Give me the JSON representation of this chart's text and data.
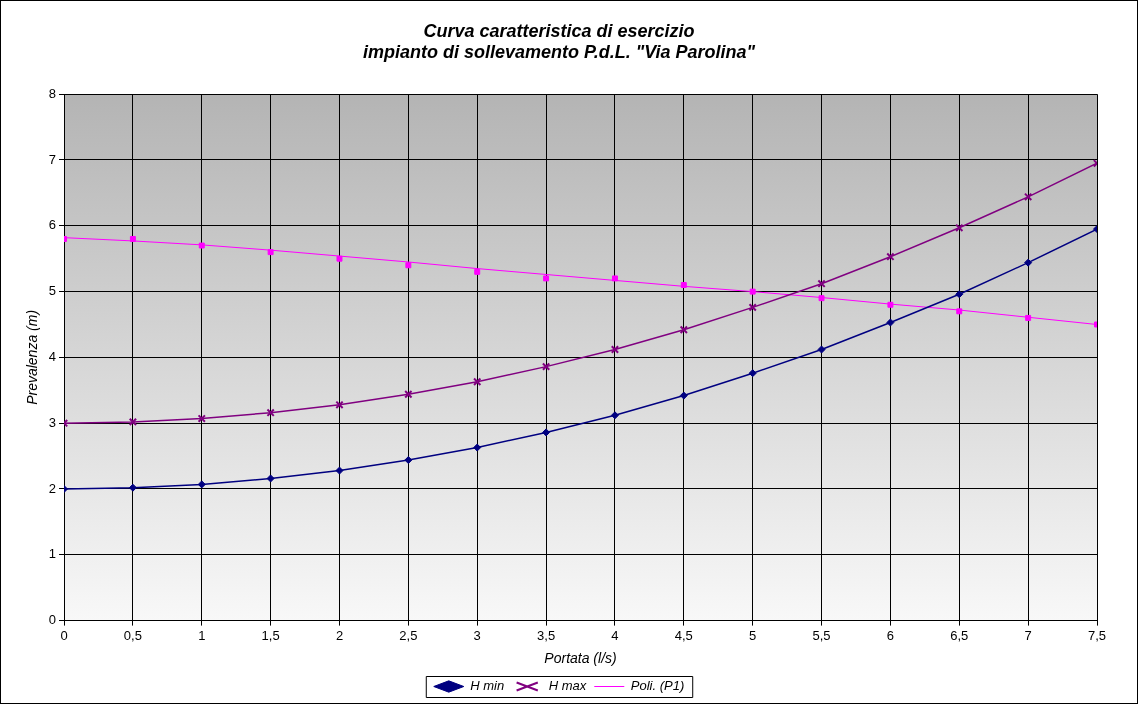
{
  "chart_data": {
    "type": "line",
    "title": "Curva caratteristica di esercizio\nimpianto di sollevamento P.d.L. \"Via Parolina\"",
    "xlabel": "Portata (l/s)",
    "ylabel": "Prevalenza (m)",
    "x": [
      0,
      0.5,
      1,
      1.5,
      2,
      2.5,
      3,
      3.5,
      4,
      4.5,
      5,
      5.5,
      6,
      6.5,
      7,
      7.5
    ],
    "series": [
      {
        "name": "H min",
        "color": "#000080",
        "marker": "diamond",
        "values": [
          2.0,
          2.02,
          2.07,
          2.16,
          2.28,
          2.44,
          2.63,
          2.86,
          3.12,
          3.42,
          3.76,
          4.12,
          4.53,
          4.96,
          5.44,
          5.95
        ]
      },
      {
        "name": "H max",
        "color": "#800080",
        "marker": "cross",
        "values": [
          3.0,
          3.02,
          3.07,
          3.16,
          3.28,
          3.44,
          3.63,
          3.86,
          4.12,
          4.42,
          4.76,
          5.12,
          5.53,
          5.97,
          6.44,
          6.95
        ]
      },
      {
        "type": "scatter",
        "color": "#ff00ff",
        "marker": "square",
        "values": [
          5.8,
          5.8,
          5.7,
          5.6,
          5.5,
          5.4,
          5.3,
          5.2,
          5.2,
          5.1,
          5.0,
          4.9,
          4.8,
          4.7,
          4.6,
          4.5
        ]
      },
      {
        "name": "Poli. (P1)",
        "color": "#ff00ff",
        "marker": "none",
        "values": [
          5.82,
          5.77,
          5.71,
          5.63,
          5.54,
          5.45,
          5.35,
          5.26,
          5.17,
          5.08,
          5.0,
          4.91,
          4.81,
          4.72,
          4.61,
          4.5
        ]
      }
    ],
    "xlim": [
      0,
      7.5
    ],
    "xticks": [
      0,
      {
        "value": 0.5,
        "label": "0,5"
      },
      1,
      {
        "value": 1.5,
        "label": "1,5"
      },
      2,
      {
        "value": 2.5,
        "label": "2,5"
      },
      3,
      {
        "value": 3.5,
        "label": "3,5"
      },
      4,
      {
        "value": 4.5,
        "label": "4,5"
      },
      5,
      {
        "value": 5.5,
        "label": "5,5"
      },
      6,
      {
        "value": 6.5,
        "label": "6,5"
      },
      7,
      {
        "value": 7.5,
        "label": "7,5"
      }
    ],
    "ylim": [
      0,
      8
    ],
    "yticks": [
      0,
      1,
      2,
      3,
      4,
      5,
      6,
      7,
      8
    ],
    "grid": true,
    "legend": "bottom",
    "line_style": "solid"
  }
}
